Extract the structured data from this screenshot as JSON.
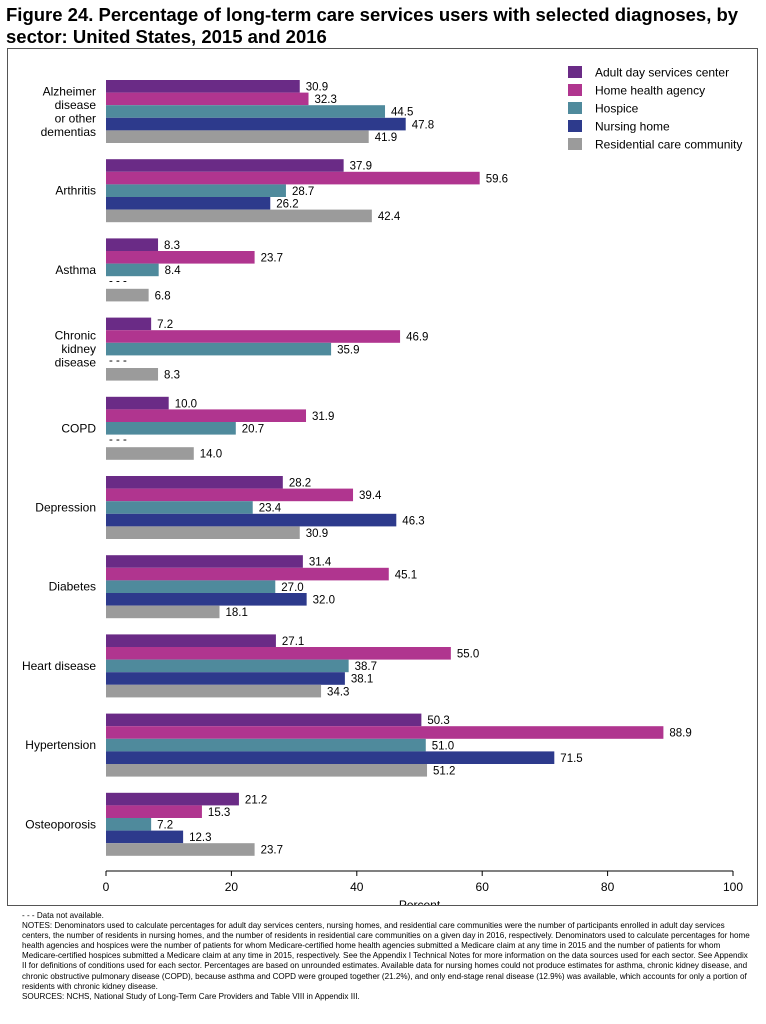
{
  "title": "Figure 24. Percentage of long-term care services users with selected diagnoses, by sector: United States, 2015 and 2016",
  "chart_data": {
    "type": "bar",
    "orientation": "horizontal",
    "xlabel": "Percent",
    "xlim": [
      0,
      100
    ],
    "xticks": [
      "0",
      "20",
      "40",
      "60",
      "80",
      "100"
    ],
    "categories": [
      [
        "Alzheimer",
        "disease",
        "or other",
        "dementias"
      ],
      [
        "Arthritis"
      ],
      [
        "Asthma"
      ],
      [
        "Chronic",
        "kidney",
        "disease"
      ],
      [
        "COPD"
      ],
      [
        "Depression"
      ],
      [
        "Diabetes"
      ],
      [
        "Heart disease"
      ],
      [
        "Hypertension"
      ],
      [
        "Osteoporosis"
      ]
    ],
    "missing_label": "- - -",
    "series": [
      {
        "name": "Adult day services center",
        "color": "#6a2b86",
        "values": [
          30.9,
          37.9,
          8.3,
          7.2,
          10.0,
          28.2,
          31.4,
          27.1,
          50.3,
          21.2
        ],
        "labels": [
          "30.9",
          "37.9",
          "8.3",
          "7.2",
          "10.0",
          "28.2",
          "31.4",
          "27.1",
          "50.3",
          "21.2"
        ]
      },
      {
        "name": "Home health agency",
        "color": "#b0358f",
        "values": [
          32.3,
          59.6,
          23.7,
          46.9,
          31.9,
          39.4,
          45.1,
          55.0,
          88.9,
          15.3
        ],
        "labels": [
          "32.3",
          "59.6",
          "23.7",
          "46.9",
          "31.9",
          "39.4",
          "45.1",
          "55.0",
          "88.9",
          "15.3"
        ]
      },
      {
        "name": "Hospice",
        "color": "#4f8a9c",
        "values": [
          44.5,
          28.7,
          8.4,
          35.9,
          20.7,
          23.4,
          27.0,
          38.7,
          51.0,
          7.2
        ],
        "labels": [
          "44.5",
          "28.7",
          "8.4",
          "35.9",
          "20.7",
          "23.4",
          "27.0",
          "38.7",
          "51.0",
          "7.2"
        ]
      },
      {
        "name": "Nursing home",
        "color": "#2d3a8c",
        "values": [
          47.8,
          26.2,
          null,
          null,
          null,
          46.3,
          32.0,
          38.1,
          71.5,
          12.3
        ],
        "labels": [
          "47.8",
          "26.2",
          null,
          null,
          null,
          "46.3",
          "32.0",
          "38.1",
          "71.5",
          "12.3"
        ]
      },
      {
        "name": "Residential care community",
        "color": "#9b9b9b",
        "values": [
          41.9,
          42.4,
          6.8,
          8.3,
          14.0,
          30.9,
          18.1,
          34.3,
          51.2,
          23.7
        ],
        "labels": [
          "41.9",
          "42.4",
          "6.8",
          "8.3",
          "14.0",
          "30.9",
          "18.1",
          "34.3",
          "51.2",
          "23.7"
        ]
      }
    ],
    "legend_position": "top-right",
    "grid": false
  },
  "notes": {
    "not_available": "- - - Data not available.",
    "notes_text": "NOTES: Denominators used to calculate percentages for adult day services centers, nursing homes, and residential care communities were the number of participants enrolled in adult day services centers, the number of residents in nursing homes, and the number of residents in residential care communities on a given day in 2016, respectively. Denominators used to calculate percentages for home health agencies and hospices were the number of patients for whom Medicare-certified home health agencies submitted a Medicare claim at any time in 2015 and the number of patients for whom Medicare-certified hospices submitted a Medicare claim at any time in 2015, respectively. See the Appendix I Technical Notes for more information on the data sources used for each sector. See Appendix II for definitions of conditions used for each sector. Percentages are based on unrounded estimates. Available data for nursing homes could not produce estimates for asthma, chronic kidney disease, and chronic obstructive pulmonary disease (COPD), because asthma and COPD were grouped together (21.2%), and only end-stage renal disease (12.9%) was available, which accounts for only a portion of residents with chronic kidney disease.",
    "sources": "SOURCES: NCHS, National Study of Long-Term Care Providers and Table VIII in Appendix III."
  }
}
